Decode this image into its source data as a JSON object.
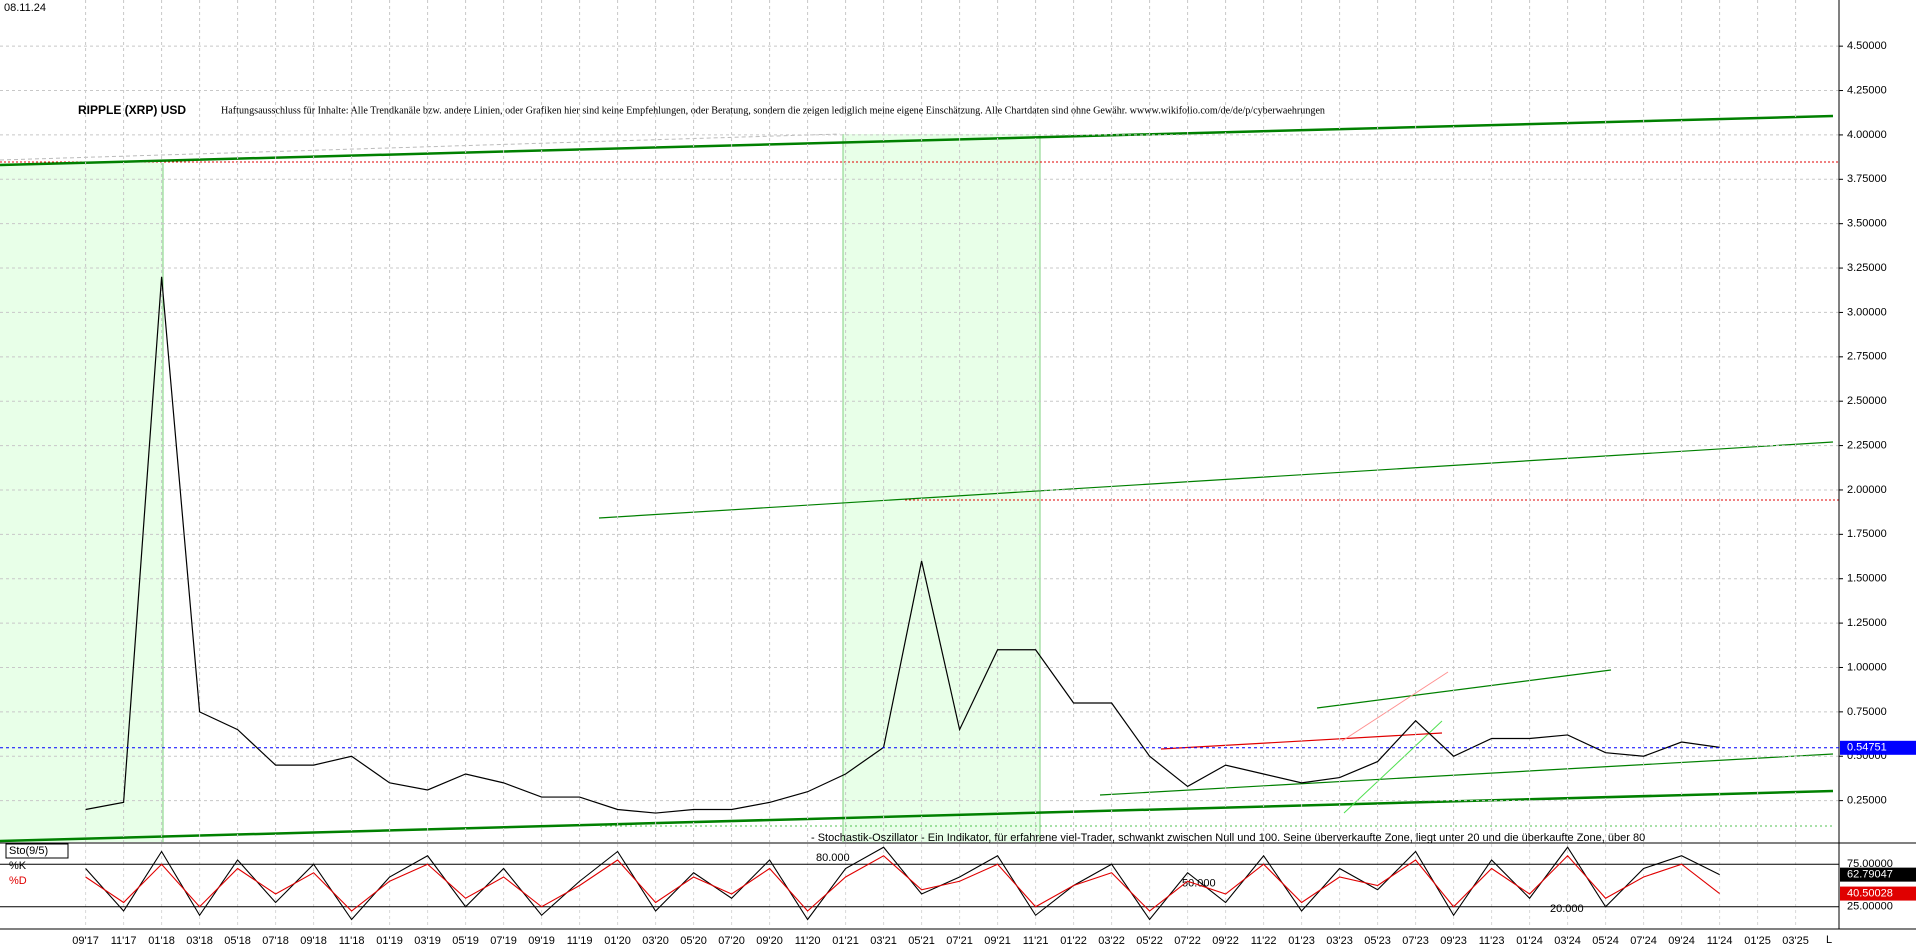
{
  "date": "08.11.24",
  "corner_label": "L",
  "chart_data": [
    {
      "type": "line",
      "title": "RIPPLE (XRP) USD",
      "subtitle": "Haftungsausschluss für Inhalte: Alle Trendkanäle bzw. andere Linien, oder Grafiken hier sind keine Empfehlungen, oder Beratung, sondern die zeigen lediglich meine eigene Einschätzung. Alle Chartdaten sind ohne Gewähr.  wwww.wikifolio.com/de/de/p/cyberwaehrungen",
      "categories": [
        "09'17",
        "11'17",
        "01'18",
        "03'18",
        "05'18",
        "07'18",
        "09'18",
        "11'18",
        "01'19",
        "03'19",
        "05'19",
        "07'19",
        "09'19",
        "11'19",
        "01'20",
        "03'20",
        "05'20",
        "07'20",
        "09'20",
        "11'20",
        "01'21",
        "03'21",
        "05'21",
        "07'21",
        "09'21",
        "11'21",
        "01'22",
        "03'22",
        "05'22",
        "07'22",
        "09'22",
        "11'22",
        "01'23",
        "03'23",
        "05'23",
        "07'23",
        "09'23",
        "11'23",
        "01'24",
        "03'24",
        "05'24",
        "07'24",
        "09'24",
        "11'24",
        "01'25",
        "03'25"
      ],
      "values": [
        0.2,
        0.24,
        3.2,
        0.75,
        0.65,
        0.45,
        0.45,
        0.5,
        0.35,
        0.31,
        0.4,
        0.35,
        0.27,
        0.27,
        0.2,
        0.18,
        0.2,
        0.2,
        0.24,
        0.3,
        0.4,
        0.55,
        1.6,
        0.65,
        1.1,
        1.1,
        0.8,
        0.8,
        0.5,
        0.33,
        0.45,
        0.4,
        0.35,
        0.38,
        0.47,
        0.7,
        0.5,
        0.6,
        0.6,
        0.62,
        0.52,
        0.5,
        0.58,
        0.55,
        null,
        null
      ],
      "color": "#000000",
      "last_value": 0.54751,
      "last_value_color": "#0000ff",
      "ylim": [
        0,
        4.76
      ],
      "yticks": [
        {
          "value": 0.25,
          "label": "0.25000"
        },
        {
          "value": 0.5,
          "label": "0.50000"
        },
        {
          "value": 0.75,
          "label": "0.75000"
        },
        {
          "value": 1,
          "label": "1.00000"
        },
        {
          "value": 1.25,
          "label": "1.25000"
        },
        {
          "value": 1.5,
          "label": "1.50000"
        },
        {
          "value": 1.75,
          "label": "1.75000"
        },
        {
          "value": 2,
          "label": "2.00000"
        },
        {
          "value": 2.25,
          "label": "2.25000"
        },
        {
          "value": 2.5,
          "label": "2.50000"
        },
        {
          "value": 2.75,
          "label": "2.75000"
        },
        {
          "value": 3,
          "label": "3.00000"
        },
        {
          "value": 3.25,
          "label": "3.25000"
        },
        {
          "value": 3.5,
          "label": "3.50000"
        },
        {
          "value": 3.75,
          "label": "3.75000"
        },
        {
          "value": 4,
          "label": "4.00000"
        },
        {
          "value": 4.25,
          "label": "4.25000"
        },
        {
          "value": 4.5,
          "label": "4.50000"
        }
      ],
      "grid": true
    },
    {
      "type": "line",
      "title": "Sto(9/5)",
      "annotation": "- Stochastik-Oszillator - Ein Indikator, für erfahrene viel-Trader, schwankt zwischen Null und 100. Seine überverkaufte Zone, liegt unter 20 und die überkaufte Zone, über 80",
      "series": [
        {
          "name": "%K",
          "color": "#000000",
          "values": [
            70,
            20,
            90,
            15,
            80,
            30,
            75,
            10,
            60,
            85,
            25,
            70,
            15,
            55,
            90,
            20,
            65,
            35,
            80,
            10,
            70,
            95,
            40,
            60,
            85,
            15,
            50,
            75,
            10,
            65,
            30,
            85,
            20,
            70,
            45,
            90,
            15,
            80,
            35,
            95,
            25,
            70,
            85,
            62.79047,
            null,
            null
          ],
          "last_value": 62.79047
        },
        {
          "name": "%D",
          "color": "#e00000",
          "values": [
            60,
            30,
            75,
            25,
            70,
            40,
            65,
            20,
            55,
            75,
            35,
            60,
            25,
            50,
            80,
            30,
            60,
            40,
            70,
            20,
            60,
            85,
            45,
            55,
            75,
            25,
            50,
            65,
            20,
            55,
            40,
            75,
            30,
            60,
            50,
            80,
            25,
            70,
            40,
            85,
            35,
            60,
            75,
            40.50028,
            null,
            null
          ],
          "last_value": 40.50028
        }
      ],
      "ylim": [
        0,
        100
      ],
      "yticks": [
        {
          "value": 75,
          "label": "75.00000"
        },
        {
          "value": 25,
          "label": "25.00000"
        }
      ],
      "levels": [
        {
          "value": 80,
          "label": "80.000"
        },
        {
          "value": 50,
          "label": "50.000"
        },
        {
          "value": 20,
          "label": "20.000"
        }
      ]
    }
  ]
}
